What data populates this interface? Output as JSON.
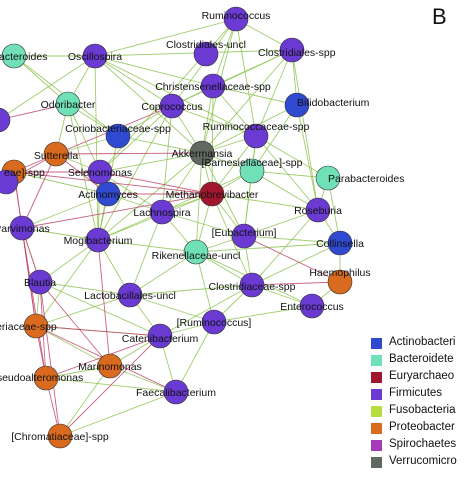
{
  "panel_label": "B",
  "colors": {
    "Actinobacteria": "#2f49d1",
    "Bacteroidetes": "#6fe0b8",
    "Euryarchaeota": "#a1162d",
    "Firmicutes": "#6a3ad3",
    "Fusobacteria": "#b6de3c",
    "Proteobacteria": "#d96a1e",
    "Spirochaetes": "#a53bbb",
    "Verrucomicrobia": "#5f6961",
    "edge_positive": "#8ec454",
    "edge_negative": "#c0476a"
  },
  "legend": [
    {
      "label": "Actinobacteri",
      "color": "#2f49d1"
    },
    {
      "label": "Bacteroidete",
      "color": "#6fe0b8"
    },
    {
      "label": "Euryarchaeo",
      "color": "#a1162d"
    },
    {
      "label": "Firmicutes",
      "color": "#6a3ad3"
    },
    {
      "label": "Fusobacteria",
      "color": "#b6de3c"
    },
    {
      "label": "Proteobacter",
      "color": "#d96a1e"
    },
    {
      "label": "Spirochaetes",
      "color": "#a53bbb"
    },
    {
      "label": "Verrucomicro",
      "color": "#5f6961"
    }
  ],
  "nodes": [
    {
      "id": "ruminococcus_top",
      "label": "Ruminococcus",
      "phylum": "Firmicutes"
    },
    {
      "id": "bacteroides",
      "label": "Bacteroides",
      "phylum": "Bacteroidetes"
    },
    {
      "id": "oscillospira",
      "label": "Oscillospira",
      "phylum": "Firmicutes"
    },
    {
      "id": "clostridiales_uncl",
      "label": "Clostridiales-uncl",
      "phylum": "Firmicutes"
    },
    {
      "id": "clostridiales_spp",
      "label": "Clostridiales-spp",
      "phylum": "Firmicutes"
    },
    {
      "id": "christensenellaceae_spp",
      "label": "Christensenellaceae-spp",
      "phylum": "Firmicutes"
    },
    {
      "id": "odoribacter",
      "label": "Odoribacter",
      "phylum": "Bacteroidetes"
    },
    {
      "id": "coprococcus",
      "label": "Coprococcus",
      "phylum": "Firmicutes"
    },
    {
      "id": "bifidobacterium",
      "label": "Bifidobacterium",
      "phylum": "Actinobacteria"
    },
    {
      "id": "coriobacteriaceae_spp",
      "label": "Coriobacteriaceae-spp",
      "phylum": "Actinobacteria"
    },
    {
      "id": "ruminococcaceae_spp",
      "label": "Ruminococcaceae-spp",
      "phylum": "Firmicutes"
    },
    {
      "id": "sutterella",
      "label": "Sutterella",
      "phylum": "Proteobacteria"
    },
    {
      "id": "akkermansia",
      "label": "Akkermansia",
      "phylum": "Verrucomicrobia"
    },
    {
      "id": "barnesiellaceae_spp",
      "label": "[Barnesiellaceae]-spp",
      "phylum": "Bacteroidetes"
    },
    {
      "id": "parabacteroides",
      "label": "Parabacteroides",
      "phylum": "Bacteroidetes"
    },
    {
      "id": "eae_spp",
      "label": "eae]-spp",
      "phylum": "Proteobacteria"
    },
    {
      "id": "selenomonas",
      "label": "Selenomonas",
      "phylum": "Firmicutes"
    },
    {
      "id": "actinomyces",
      "label": "Actinomyces",
      "phylum": "Actinobacteria"
    },
    {
      "id": "methanobrevibacter",
      "label": "Methanobrevibacter",
      "phylum": "Euryarchaeota"
    },
    {
      "id": "roseburia",
      "label": "Roseburia",
      "phylum": "Firmicutes"
    },
    {
      "id": "lachnospira",
      "label": "Lachnospira",
      "phylum": "Firmicutes"
    },
    {
      "id": "parvimonas",
      "label": "Parvimonas",
      "phylum": "Firmicutes"
    },
    {
      "id": "mogibacterium",
      "label": "Mogibacterium",
      "phylum": "Firmicutes"
    },
    {
      "id": "eubacterium",
      "label": "[Eubacterium]",
      "phylum": "Firmicutes"
    },
    {
      "id": "collinsella",
      "label": "Collinsella",
      "phylum": "Actinobacteria"
    },
    {
      "id": "rikenellaceae_uncl",
      "label": "Rikenellaceae-uncl",
      "phylum": "Bacteroidetes"
    },
    {
      "id": "blautia",
      "label": "Blautia",
      "phylum": "Firmicutes"
    },
    {
      "id": "haemophilus",
      "label": "Haemophilus",
      "phylum": "Proteobacteria"
    },
    {
      "id": "lactobacillales_uncl",
      "label": "Lactobacillales-uncl",
      "phylum": "Firmicutes"
    },
    {
      "id": "clostridiaceae_spp",
      "label": "Clostridiaceae-spp",
      "phylum": "Firmicutes"
    },
    {
      "id": "enterococcus",
      "label": "Enterococcus",
      "phylum": "Firmicutes"
    },
    {
      "id": "isseriaceae_spp",
      "label": "isseriaceae-spp",
      "phylum": "Proteobacteria"
    },
    {
      "id": "ruminococcus_bracket",
      "label": "[Ruminococcus]",
      "phylum": "Firmicutes"
    },
    {
      "id": "catenibacterium",
      "label": "Catenibacterium",
      "phylum": "Firmicutes"
    },
    {
      "id": "seudoalteromonas",
      "label": "seudoalteromonas",
      "phylum": "Proteobacteria"
    },
    {
      "id": "marinomonas",
      "label": "Marinomonas",
      "phylum": "Proteobacteria"
    },
    {
      "id": "faecalibacterium",
      "label": "Faecalibacterium",
      "phylum": "Firmicutes"
    },
    {
      "id": "chromatiaceae_spp",
      "label": "[Chromatiaceae]-spp",
      "phylum": "Proteobacteria"
    },
    {
      "id": "left_node_1",
      "label": "",
      "phylum": "Firmicutes"
    },
    {
      "id": "left_node_2",
      "label": "",
      "phylum": "Firmicutes"
    }
  ],
  "edges": [
    [
      "ruminococcus_top",
      "oscillospira",
      "positive"
    ],
    [
      "ruminococcus_top",
      "clostridiales_spp",
      "positive"
    ],
    [
      "ruminococcus_top",
      "coprococcus",
      "positive"
    ],
    [
      "ruminococcus_top",
      "christensenellaceae_spp",
      "positive"
    ],
    [
      "ruminococcus_top",
      "akkermansia",
      "positive"
    ],
    [
      "ruminococcus_top",
      "ruminococcaceae_spp",
      "positive"
    ],
    [
      "ruminococcus_top",
      "selenomonas",
      "positive"
    ],
    [
      "bacteroides",
      "oscillospira",
      "positive"
    ],
    [
      "bacteroides",
      "odoribacter",
      "positive"
    ],
    [
      "bacteroides",
      "coriobacteriaceae_spp",
      "positive"
    ],
    [
      "oscillospira",
      "coprococcus",
      "positive"
    ],
    [
      "oscillospira",
      "clostridiales_spp",
      "positive"
    ],
    [
      "oscillospira",
      "christensenellaceae_spp",
      "positive"
    ],
    [
      "oscillospira",
      "odoribacter",
      "positive"
    ],
    [
      "oscillospira",
      "akkermansia",
      "positive"
    ],
    [
      "oscillospira",
      "ruminococcaceae_spp",
      "positive"
    ],
    [
      "oscillospira",
      "mogibacterium",
      "positive"
    ],
    [
      "clostridiales_spp",
      "christensenellaceae_spp",
      "positive"
    ],
    [
      "clostridiales_spp",
      "bifidobacterium",
      "positive"
    ],
    [
      "clostridiales_spp",
      "coprococcus",
      "positive"
    ],
    [
      "clostridiales_spp",
      "ruminococcaceae_spp",
      "positive"
    ],
    [
      "clostridiales_spp",
      "akkermansia",
      "positive"
    ],
    [
      "clostridiales_spp",
      "roseburia",
      "positive"
    ],
    [
      "christensenellaceae_spp",
      "coprococcus",
      "positive"
    ],
    [
      "christensenellaceae_spp",
      "ruminococcaceae_spp",
      "positive"
    ],
    [
      "christensenellaceae_spp",
      "bifidobacterium",
      "positive"
    ],
    [
      "christensenellaceae_spp",
      "akkermansia",
      "positive"
    ],
    [
      "christensenellaceae_spp",
      "methanobrevibacter",
      "positive"
    ],
    [
      "coprococcus",
      "akkermansia",
      "positive"
    ],
    [
      "coprococcus",
      "ruminococcaceae_spp",
      "positive"
    ],
    [
      "coprococcus",
      "selenomonas",
      "positive"
    ],
    [
      "coprococcus",
      "coriobacteriaceae_spp",
      "positive"
    ],
    [
      "coprococcus",
      "mogibacterium",
      "positive"
    ],
    [
      "coprococcus",
      "lachnospira",
      "positive"
    ],
    [
      "bifidobacterium",
      "barnesiellaceae_spp",
      "positive"
    ],
    [
      "bifidobacterium",
      "roseburia",
      "positive"
    ],
    [
      "bifidobacterium",
      "akkermansia",
      "positive"
    ],
    [
      "odoribacter",
      "coriobacteriaceae_spp",
      "positive"
    ],
    [
      "odoribacter",
      "sutterella",
      "positive"
    ],
    [
      "odoribacter",
      "selenomonas",
      "positive"
    ],
    [
      "odoribacter",
      "mogibacterium",
      "positive"
    ],
    [
      "coriobacteriaceae_spp",
      "sutterella",
      "positive"
    ],
    [
      "coriobacteriaceae_spp",
      "akkermansia",
      "positive"
    ],
    [
      "coriobacteriaceae_spp",
      "mogibacterium",
      "positive"
    ],
    [
      "ruminococcaceae_spp",
      "akkermansia",
      "positive"
    ],
    [
      "ruminococcaceae_spp",
      "barnesiellaceae_spp",
      "positive"
    ],
    [
      "ruminococcaceae_spp",
      "methanobrevibacter",
      "positive"
    ],
    [
      "ruminococcaceae_spp",
      "roseburia",
      "positive"
    ],
    [
      "ruminococcaceae_spp",
      "eubacterium",
      "positive"
    ],
    [
      "ruminococcaceae_spp",
      "parabacteroides",
      "positive"
    ],
    [
      "akkermansia",
      "barnesiellaceae_spp",
      "positive"
    ],
    [
      "akkermansia",
      "methanobrevibacter",
      "positive"
    ],
    [
      "akkermansia",
      "selenomonas",
      "positive"
    ],
    [
      "akkermansia",
      "lachnospira",
      "positive"
    ],
    [
      "akkermansia",
      "mogibacterium",
      "positive"
    ],
    [
      "akkermansia",
      "rikenellaceae_uncl",
      "positive"
    ],
    [
      "akkermansia",
      "eubacterium",
      "positive"
    ],
    [
      "barnesiellaceae_spp",
      "parabacteroides",
      "positive"
    ],
    [
      "barnesiellaceae_spp",
      "methanobrevibacter",
      "positive"
    ],
    [
      "barnesiellaceae_spp",
      "roseburia",
      "positive"
    ],
    [
      "barnesiellaceae_spp",
      "eubacterium",
      "positive"
    ],
    [
      "barnesiellaceae_spp",
      "lachnospira",
      "positive"
    ],
    [
      "methanobrevibacter",
      "lachnospira",
      "positive"
    ],
    [
      "methanobrevibacter",
      "roseburia",
      "positive"
    ],
    [
      "methanobrevibacter",
      "eubacterium",
      "positive"
    ],
    [
      "methanobrevibacter",
      "rikenellaceae_uncl",
      "positive"
    ],
    [
      "methanobrevibacter",
      "mogibacterium",
      "positive"
    ],
    [
      "methanobrevibacter",
      "clostridiaceae_spp",
      "positive"
    ],
    [
      "roseburia",
      "eubacterium",
      "positive"
    ],
    [
      "roseburia",
      "collinsella",
      "positive"
    ],
    [
      "roseburia",
      "parabacteroides",
      "positive"
    ],
    [
      "roseburia",
      "clostridiaceae_spp",
      "positive"
    ],
    [
      "eubacterium",
      "collinsella",
      "positive"
    ],
    [
      "eubacterium",
      "rikenellaceae_uncl",
      "positive"
    ],
    [
      "eubacterium",
      "clostridiaceae_spp",
      "positive"
    ],
    [
      "eubacterium",
      "lachnospira",
      "positive"
    ],
    [
      "lachnospira",
      "mogibacterium",
      "positive"
    ],
    [
      "lachnospira",
      "rikenellaceae_uncl",
      "positive"
    ],
    [
      "lachnospira",
      "selenomonas",
      "positive"
    ],
    [
      "lachnospira",
      "lactobacillales_uncl",
      "positive"
    ],
    [
      "lachnospira",
      "actinomyces",
      "positive"
    ],
    [
      "selenomonas",
      "actinomyces",
      "positive"
    ],
    [
      "selenomonas",
      "mogibacterium",
      "positive"
    ],
    [
      "selenomonas",
      "sutterella",
      "positive"
    ],
    [
      "actinomyces",
      "mogibacterium",
      "positive"
    ],
    [
      "actinomyces",
      "parvimonas",
      "positive"
    ],
    [
      "actinomyces",
      "eae_spp",
      "positive"
    ],
    [
      "mogibacterium",
      "parvimonas",
      "positive"
    ],
    [
      "mogibacterium",
      "rikenellaceae_uncl",
      "positive"
    ],
    [
      "mogibacterium",
      "blautia",
      "positive"
    ],
    [
      "mogibacterium",
      "lactobacillales_uncl",
      "positive"
    ],
    [
      "mogibacterium",
      "isseriaceae_spp",
      "positive"
    ],
    [
      "rikenellaceae_uncl",
      "clostridiaceae_spp",
      "positive"
    ],
    [
      "rikenellaceae_uncl",
      "lactobacillales_uncl",
      "positive"
    ],
    [
      "rikenellaceae_uncl",
      "collinsella",
      "positive"
    ],
    [
      "rikenellaceae_uncl",
      "enterococcus",
      "positive"
    ],
    [
      "rikenellaceae_uncl",
      "ruminococcus_bracket",
      "positive"
    ],
    [
      "clostridiaceae_spp",
      "enterococcus",
      "positive"
    ],
    [
      "clostridiaceae_spp",
      "ruminococcus_bracket",
      "positive"
    ],
    [
      "clostridiaceae_spp",
      "lactobacillales_uncl",
      "positive"
    ],
    [
      "clostridiaceae_spp",
      "collinsella",
      "positive"
    ],
    [
      "clostridiaceae_spp",
      "catenibacterium",
      "positive"
    ],
    [
      "lactobacillales_uncl",
      "ruminococcus_bracket",
      "positive"
    ],
    [
      "lactobacillales_uncl",
      "blautia",
      "positive"
    ],
    [
      "lactobacillales_uncl",
      "catenibacterium",
      "positive"
    ],
    [
      "lactobacillales_uncl",
      "isseriaceae_spp",
      "positive"
    ],
    [
      "ruminococcus_bracket",
      "catenibacterium",
      "positive"
    ],
    [
      "ruminococcus_bracket",
      "enterococcus",
      "positive"
    ],
    [
      "ruminococcus_bracket",
      "faecalibacterium",
      "positive"
    ],
    [
      "catenibacterium",
      "faecalibacterium",
      "positive"
    ],
    [
      "catenibacterium",
      "marinomonas",
      "positive"
    ],
    [
      "catenibacterium",
      "blautia",
      "positive"
    ],
    [
      "catenibacterium",
      "isseriaceae_spp",
      "positive"
    ],
    [
      "blautia",
      "isseriaceae_spp",
      "positive"
    ],
    [
      "blautia",
      "parvimonas",
      "positive"
    ],
    [
      "faecalibacterium",
      "marinomonas",
      "positive"
    ],
    [
      "faecalibacterium",
      "chromatiaceae_spp",
      "positive"
    ],
    [
      "faecalibacterium",
      "seudoalteromonas",
      "positive"
    ],
    [
      "marinomonas",
      "seudoalteromonas",
      "positive"
    ],
    [
      "marinomonas",
      "chromatiaceae_spp",
      "positive"
    ],
    [
      "marinomonas",
      "isseriaceae_spp",
      "positive"
    ],
    [
      "collinsella",
      "haemophilus",
      "positive"
    ],
    [
      "enterococcus",
      "haemophilus",
      "positive"
    ],
    [
      "parabacteroides",
      "collinsella",
      "positive"
    ],
    [
      "left_node_1",
      "oscillospira",
      "positive"
    ],
    [
      "left_node_2",
      "eae_spp",
      "positive"
    ],
    [
      "sutterella",
      "left_node_2",
      "negative"
    ],
    [
      "sutterella",
      "eae_spp",
      "negative"
    ],
    [
      "sutterella",
      "parvimonas",
      "negative"
    ],
    [
      "sutterella",
      "actinomyces",
      "negative"
    ],
    [
      "sutterella",
      "coprococcus",
      "negative"
    ],
    [
      "eae_spp",
      "parvimonas",
      "negative"
    ],
    [
      "eae_spp",
      "selenomonas",
      "negative"
    ],
    [
      "eae_spp",
      "methanobrevibacter",
      "negative"
    ],
    [
      "eae_spp",
      "isseriaceae_spp",
      "negative"
    ],
    [
      "parvimonas",
      "methanobrevibacter",
      "negative"
    ],
    [
      "parvimonas",
      "isseriaceae_spp",
      "negative"
    ],
    [
      "parvimonas",
      "seudoalteromonas",
      "negative"
    ],
    [
      "isseriaceae_spp",
      "seudoalteromonas",
      "negative"
    ],
    [
      "isseriaceae_spp",
      "faecalibacterium",
      "negative"
    ],
    [
      "isseriaceae_spp",
      "catenibacterium",
      "negative"
    ],
    [
      "seudoalteromonas",
      "catenibacterium",
      "negative"
    ],
    [
      "seudoalteromonas",
      "chromatiaceae_spp",
      "negative"
    ],
    [
      "marinomonas",
      "blautia",
      "negative"
    ],
    [
      "marinomonas",
      "mogibacterium",
      "negative"
    ],
    [
      "chromatiaceae_spp",
      "catenibacterium",
      "negative"
    ],
    [
      "chromatiaceae_spp",
      "blautia",
      "negative"
    ],
    [
      "methanobrevibacter",
      "actinomyces",
      "negative"
    ],
    [
      "methanobrevibacter",
      "selenomonas",
      "negative"
    ],
    [
      "haemophilus",
      "eubacterium",
      "negative"
    ],
    [
      "haemophilus",
      "clostridiaceae_spp",
      "negative"
    ],
    [
      "sutterella",
      "akkermansia",
      "negative"
    ],
    [
      "odoribacter",
      "left_node_1",
      "negative"
    ],
    [
      "blautia",
      "seudoalteromonas",
      "negative"
    ],
    [
      "parvimonas",
      "blautia",
      "negative"
    ]
  ]
}
